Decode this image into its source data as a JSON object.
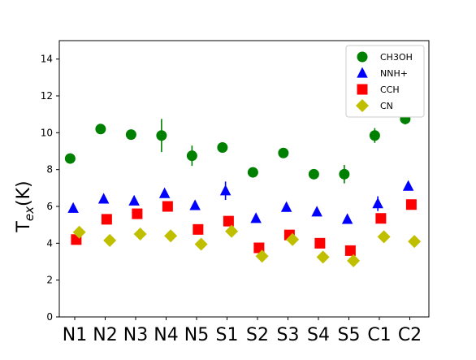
{
  "chart_data": {
    "type": "scatter",
    "title": "",
    "xlabel": "",
    "ylabel": "T",
    "ylabel_subscript": "ex",
    "ylabel_unit": "(K)",
    "categories": [
      "N1",
      "N2",
      "N3",
      "N4",
      "N5",
      "S1",
      "S2",
      "S3",
      "S4",
      "S5",
      "C1",
      "C2"
    ],
    "ylim": [
      0,
      15
    ],
    "yticks": [
      0,
      2,
      4,
      6,
      8,
      10,
      12,
      14
    ],
    "grid": false,
    "legend_position": "top-right",
    "series": [
      {
        "name": "CH3OH",
        "marker": "circle",
        "color": "#008000",
        "offset": -0.15,
        "values": [
          8.6,
          10.2,
          9.9,
          9.85,
          8.75,
          9.2,
          7.85,
          8.9,
          7.75,
          7.75,
          9.85,
          10.75
        ],
        "errors": [
          0,
          0,
          0,
          0.9,
          0.55,
          0,
          0,
          0,
          0,
          0.5,
          0.4,
          0.3
        ]
      },
      {
        "name": "NNH+",
        "marker": "triangle",
        "color": "#0000ff",
        "offset": -0.05,
        "values": [
          5.9,
          6.4,
          6.3,
          6.7,
          6.05,
          6.85,
          5.35,
          5.95,
          5.7,
          5.3,
          6.15,
          7.1
        ],
        "errors": [
          0,
          0,
          0,
          0,
          0,
          0.5,
          0,
          0,
          0,
          0,
          0.4,
          0
        ]
      },
      {
        "name": "CCH",
        "marker": "square",
        "color": "#ff0000",
        "offset": 0.05,
        "values": [
          4.2,
          5.3,
          5.6,
          6.0,
          4.75,
          5.2,
          3.75,
          4.45,
          4.0,
          3.6,
          5.35,
          6.1
        ],
        "errors": [
          0,
          0,
          0,
          0,
          0,
          0,
          0,
          0,
          0,
          0,
          0,
          0
        ]
      },
      {
        "name": "CN",
        "marker": "diamond",
        "color": "#bfbf00",
        "offset": 0.15,
        "values": [
          4.6,
          4.15,
          4.5,
          4.4,
          3.95,
          4.65,
          3.3,
          4.2,
          3.25,
          3.05,
          4.35,
          4.1
        ],
        "errors": [
          0,
          0,
          0,
          0,
          0,
          0,
          0,
          0,
          0,
          0,
          0,
          0
        ]
      }
    ]
  }
}
